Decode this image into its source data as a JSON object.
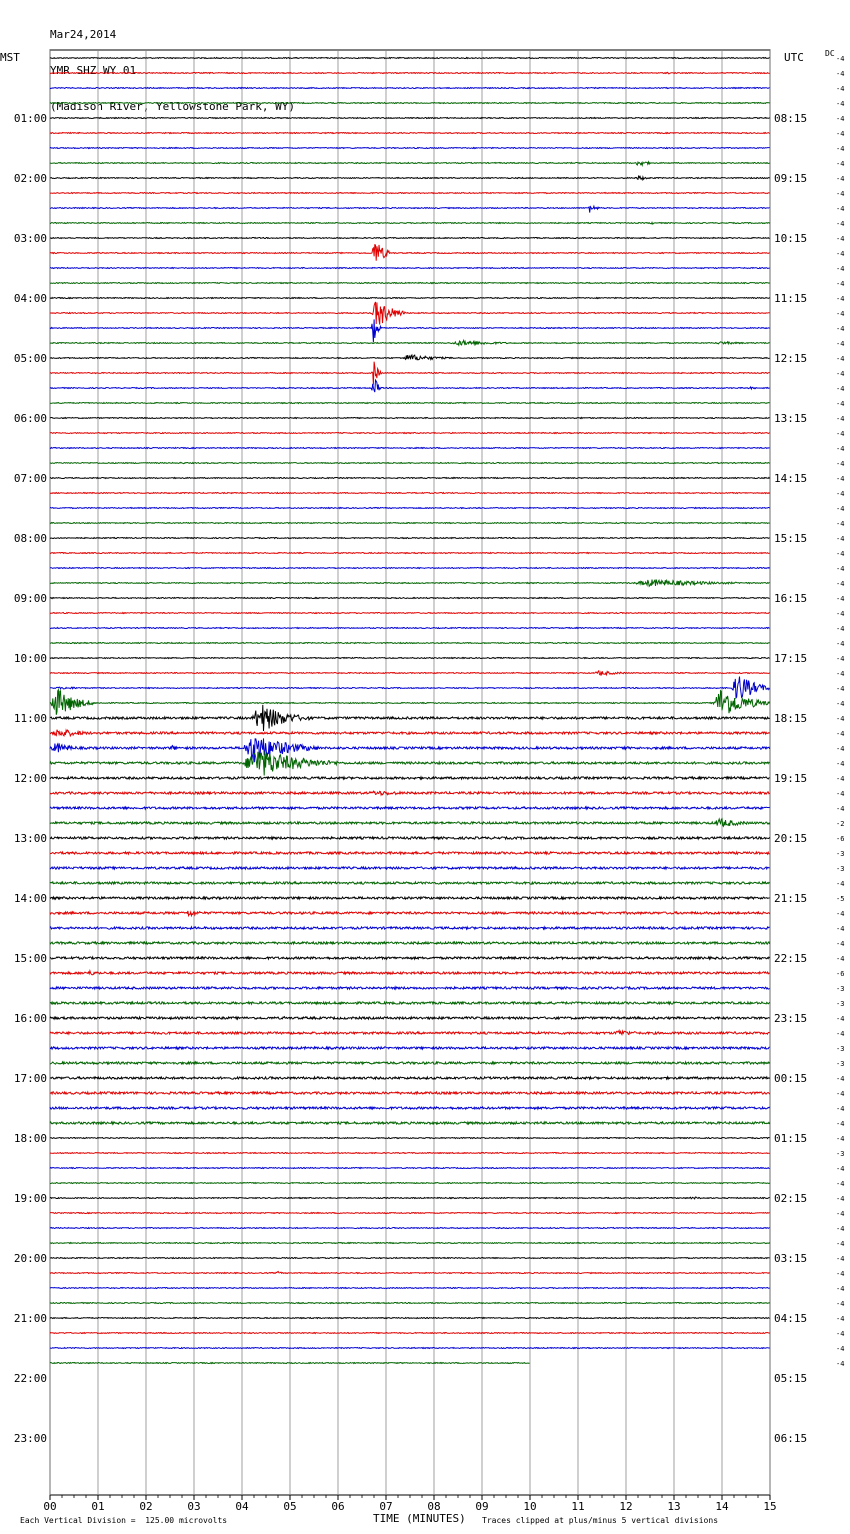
{
  "chart_data": {
    "type": "line",
    "title_lines": [
      "Mar24,2014",
      "YMR SHZ WY 01",
      "(Madison River, Yellowstone Park, WY)"
    ],
    "left_timezone": "MST",
    "right_timezone": "UTC",
    "dc_label": "DC",
    "xlabel": "TIME (MINUTES)",
    "xlim": [
      0,
      15
    ],
    "x_ticks": [
      "00",
      "01",
      "02",
      "03",
      "04",
      "05",
      "06",
      "07",
      "08",
      "09",
      "10",
      "11",
      "12",
      "13",
      "14",
      "15"
    ],
    "left_hour_labels": [
      "01:00",
      "02:00",
      "03:00",
      "04:00",
      "05:00",
      "06:00",
      "07:00",
      "08:00",
      "09:00",
      "10:00",
      "11:00",
      "12:00",
      "13:00",
      "14:00",
      "15:00",
      "16:00",
      "17:00",
      "18:00",
      "19:00",
      "20:00",
      "21:00",
      "22:00",
      "23:00"
    ],
    "right_hour_labels": [
      "08:15",
      "09:15",
      "10:15",
      "11:15",
      "12:15",
      "13:15",
      "14:15",
      "15:15",
      "16:15",
      "17:15",
      "18:15",
      "19:15",
      "20:15",
      "21:15",
      "22:15",
      "23:15",
      "00:15",
      "01:15",
      "02:15",
      "03:15",
      "04:15",
      "05:15",
      "06:15"
    ],
    "trace_colors": [
      "#000000",
      "#e00000",
      "#0000d0",
      "#006400"
    ],
    "trace_count": 88,
    "last_trace_end_minute": 10,
    "dc_offsets": [
      -4,
      -4,
      -4,
      -4,
      -4,
      -4,
      -4,
      -4,
      -4,
      -4,
      -4,
      -4,
      -4,
      -4,
      -4,
      -4,
      -4,
      -4,
      -4,
      -4,
      -4,
      -4,
      -4,
      -4,
      -4,
      -4,
      -4,
      -4,
      -4,
      -4,
      -4,
      -4,
      -4,
      -4,
      -4,
      -4,
      -4,
      -4,
      -4,
      -4,
      -4,
      -4,
      -4,
      -4,
      -4,
      -4,
      -4,
      -4,
      -4,
      -4,
      -4,
      -2,
      -6,
      -3,
      -3,
      -4,
      -5,
      -4,
      -4,
      -4,
      -4,
      -6,
      -3,
      -3,
      -4,
      -4,
      -3,
      -3,
      -4,
      -4,
      -4,
      -4,
      -4,
      -3,
      -4,
      -4,
      -4,
      -4,
      -4,
      -4,
      -4,
      -4,
      -4,
      -4,
      -4,
      -4,
      -4,
      -4
    ],
    "events": [
      {
        "trace": 1,
        "minute": 12.8,
        "amplitude": 0.4,
        "duration": 0.3
      },
      {
        "trace": 7,
        "minute": 12.2,
        "amplitude": 1.3,
        "duration": 0.4
      },
      {
        "trace": 8,
        "minute": 12.2,
        "amplitude": 0.9,
        "duration": 0.4
      },
      {
        "trace": 10,
        "minute": 11.2,
        "amplitude": 1.5,
        "duration": 0.3
      },
      {
        "trace": 11,
        "minute": 1.7,
        "amplitude": 0.4,
        "duration": 0.2
      },
      {
        "trace": 11,
        "minute": 12.5,
        "amplitude": 0.5,
        "duration": 0.2
      },
      {
        "trace": 13,
        "minute": 6.7,
        "amplitude": 5,
        "duration": 0.4
      },
      {
        "trace": 17,
        "minute": 6.7,
        "amplitude": 5,
        "duration": 0.7
      },
      {
        "trace": 18,
        "minute": 6.7,
        "amplitude": 5,
        "duration": 0.2
      },
      {
        "trace": 19,
        "minute": 8.3,
        "amplitude": 0.9,
        "duration": 1.7
      },
      {
        "trace": 19,
        "minute": 13.8,
        "amplitude": 0.5,
        "duration": 1.2
      },
      {
        "trace": 20,
        "minute": 7.3,
        "amplitude": 1.2,
        "duration": 1.2
      },
      {
        "trace": 21,
        "minute": 6.7,
        "amplitude": 5,
        "duration": 0.2
      },
      {
        "trace": 22,
        "minute": 6.7,
        "amplitude": 5,
        "duration": 0.2
      },
      {
        "trace": 22,
        "minute": 14.5,
        "amplitude": 0.4,
        "duration": 0.5
      },
      {
        "trace": 24,
        "minute": 11.0,
        "amplitude": 0.4,
        "duration": 0.2
      },
      {
        "trace": 27,
        "minute": 2.7,
        "amplitude": 0.4,
        "duration": 0.3
      },
      {
        "trace": 35,
        "minute": 12.1,
        "amplitude": 1.2,
        "duration": 2.8
      },
      {
        "trace": 41,
        "minute": 11.3,
        "amplitude": 0.8,
        "duration": 1.0
      },
      {
        "trace": 42,
        "minute": 0.0,
        "amplitude": 0.4,
        "duration": 1.6
      },
      {
        "trace": 42,
        "minute": 14.2,
        "amplitude": 5,
        "duration": 0.8
      },
      {
        "trace": 43,
        "minute": 0.0,
        "amplitude": 5,
        "duration": 0.9
      },
      {
        "trace": 43,
        "minute": 13.8,
        "amplitude": 5,
        "duration": 1.2
      },
      {
        "trace": 44,
        "minute": 4.2,
        "amplitude": 5,
        "duration": 1.2
      },
      {
        "trace": 45,
        "minute": 0.0,
        "amplitude": 1.5,
        "duration": 1.2
      },
      {
        "trace": 46,
        "minute": 0.0,
        "amplitude": 1.8,
        "duration": 0.8
      },
      {
        "trace": 46,
        "minute": 2.5,
        "amplitude": 1.0,
        "duration": 0.3
      },
      {
        "trace": 46,
        "minute": 4.0,
        "amplitude": 5,
        "duration": 1.6
      },
      {
        "trace": 46,
        "minute": 11.8,
        "amplitude": 0.6,
        "duration": 0.8
      },
      {
        "trace": 47,
        "minute": 4.0,
        "amplitude": 5,
        "duration": 2.0
      },
      {
        "trace": 49,
        "minute": 6.5,
        "amplitude": 0.8,
        "duration": 2.0
      },
      {
        "trace": 51,
        "minute": 13.8,
        "amplitude": 1.6,
        "duration": 1.0
      },
      {
        "trace": 57,
        "minute": 2.8,
        "amplitude": 1.2,
        "duration": 0.6
      },
      {
        "trace": 61,
        "minute": 0.7,
        "amplitude": 0.8,
        "duration": 0.8
      },
      {
        "trace": 64,
        "minute": 4.8,
        "amplitude": 0.5,
        "duration": 0.5
      },
      {
        "trace": 65,
        "minute": 11.7,
        "amplitude": 1.0,
        "duration": 1.0
      },
      {
        "trace": 76,
        "minute": 13.3,
        "amplitude": 0.5,
        "duration": 0.5
      },
      {
        "trace": 81,
        "minute": 4.7,
        "amplitude": 0.7,
        "duration": 0.2
      }
    ]
  },
  "footer": {
    "vertical_division": "Each Vertical Division =  125.00 microvolts",
    "clipping_note": "Traces clipped at plus/minus 5 vertical divisions"
  }
}
